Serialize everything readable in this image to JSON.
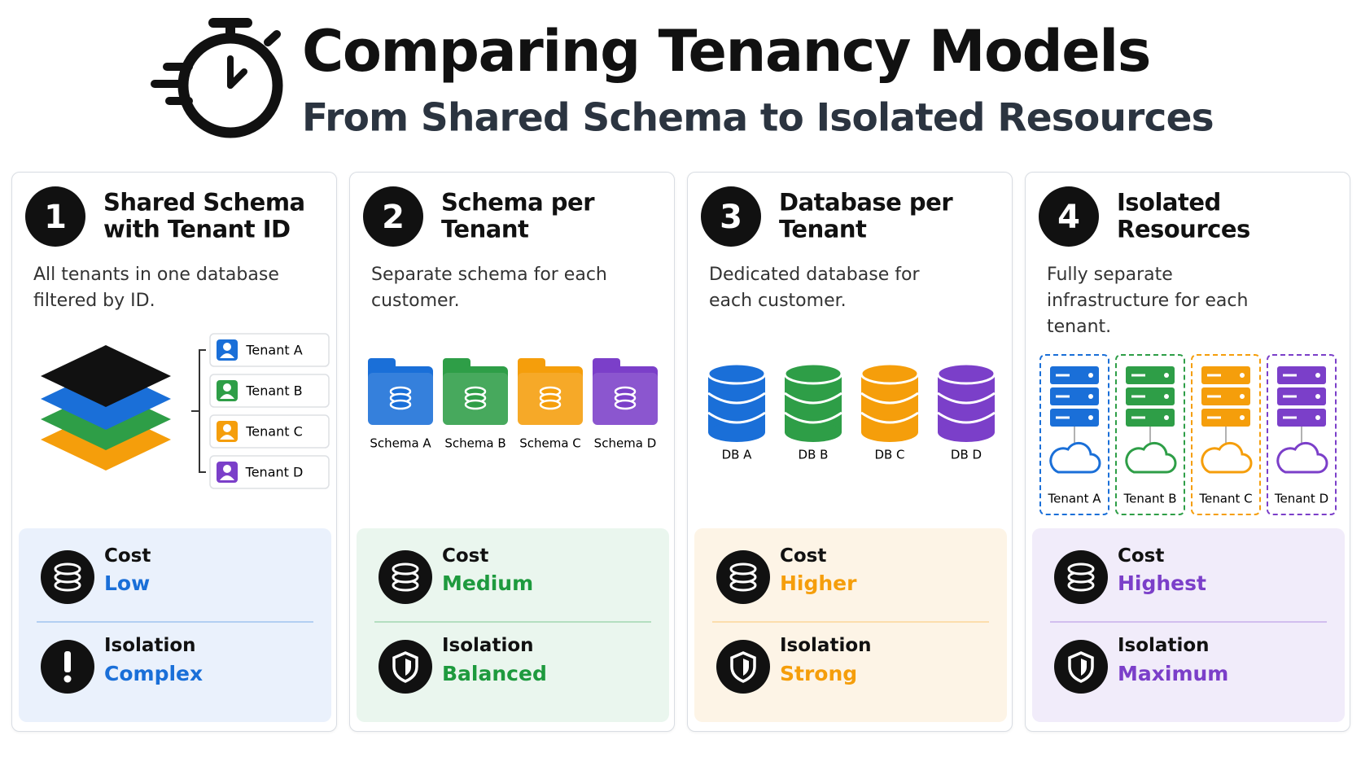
{
  "header": {
    "title": "Comparing Tenancy Models",
    "subtitle": "From Shared Schema to Isolated Resources"
  },
  "cards": [
    {
      "number": "1",
      "title": "Shared Schema with Tenant ID",
      "description": "All tenants in one database filtered by ID.",
      "color": "#1a6fd8",
      "panel_color": "#eaf1fc",
      "items": [
        {
          "label": "Tenant A",
          "color": "#1a6fd8"
        },
        {
          "label": "Tenant B",
          "color": "#2e9e47"
        },
        {
          "label": "Tenant C",
          "color": "#f59e0b"
        },
        {
          "label": "Tenant D",
          "color": "#7b3fc9"
        }
      ],
      "cost_label": "Cost",
      "cost": "Low",
      "isolation_label": "Isolation",
      "isolation": "Complex"
    },
    {
      "number": "2",
      "title": "Schema per Tenant",
      "description": "Separate schema for each customer.",
      "color": "#1e9a3e",
      "panel_color": "#eaf6ee",
      "items": [
        {
          "label": "Schema A",
          "color": "#1a6fd8"
        },
        {
          "label": "Schema B",
          "color": "#2e9e47"
        },
        {
          "label": "Schema C",
          "color": "#f59e0b"
        },
        {
          "label": "Schema D",
          "color": "#7b3fc9"
        }
      ],
      "cost_label": "Cost",
      "cost": "Medium",
      "isolation_label": "Isolation",
      "isolation": "Balanced"
    },
    {
      "number": "3",
      "title": "Database per Tenant",
      "description": "Dedicated database for each customer.",
      "color": "#f59e0b",
      "panel_color": "#fdf4e6",
      "items": [
        {
          "label": "DB A",
          "color": "#1a6fd8"
        },
        {
          "label": "DB B",
          "color": "#2e9e47"
        },
        {
          "label": "DB C",
          "color": "#f59e0b"
        },
        {
          "label": "DB D",
          "color": "#7b3fc9"
        }
      ],
      "cost_label": "Cost",
      "cost": "Higher",
      "isolation_label": "Isolation",
      "isolation": "Strong"
    },
    {
      "number": "4",
      "title": "Isolated Resources",
      "description": "Fully separate infrastructure for each tenant.",
      "color": "#7b3fc9",
      "panel_color": "#f1ecfa",
      "items": [
        {
          "label": "Tenant A",
          "color": "#1a6fd8"
        },
        {
          "label": "Tenant B",
          "color": "#2e9e47"
        },
        {
          "label": "Tenant C",
          "color": "#f59e0b"
        },
        {
          "label": "Tenant D",
          "color": "#7b3fc9"
        }
      ],
      "cost_label": "Cost",
      "cost": "Highest",
      "isolation_label": "Isolation",
      "isolation": "Maximum"
    }
  ]
}
